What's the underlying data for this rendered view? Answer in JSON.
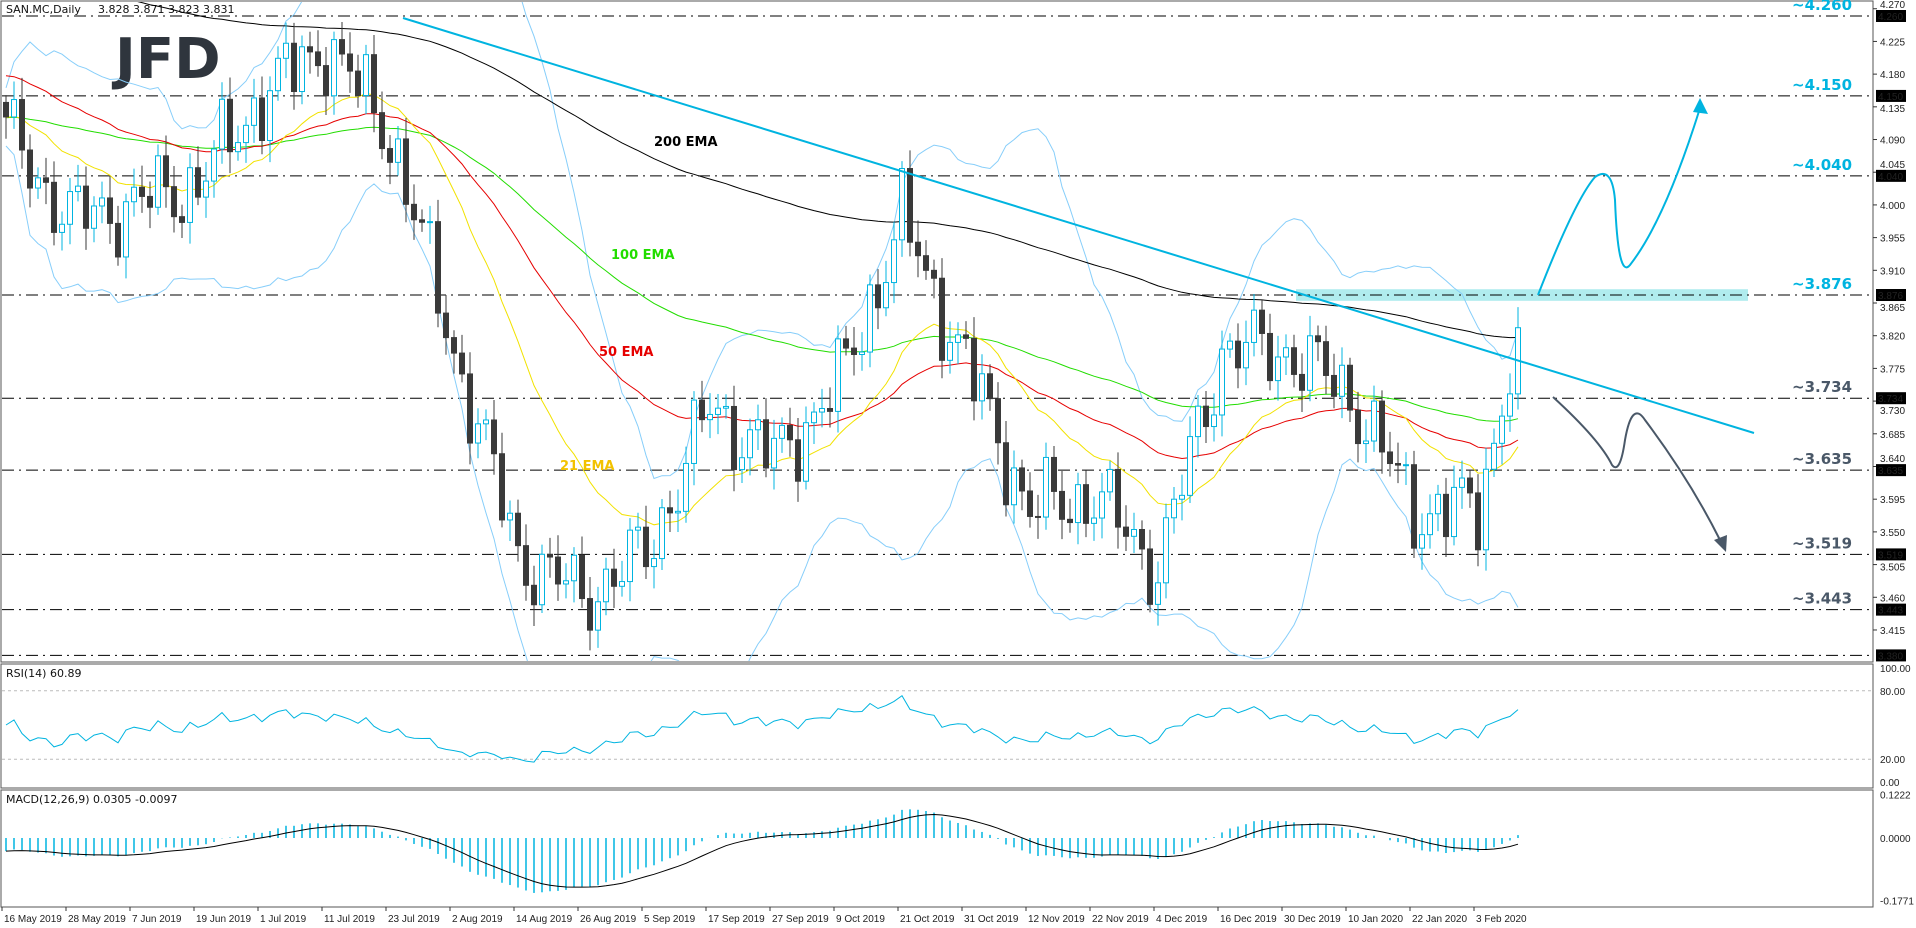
{
  "header": {
    "symbol_info": "SAN.MC,Daily",
    "ohlc": "3.828 3.871 3.823 3.831"
  },
  "logo": "JFD",
  "rsi_panel": {
    "label": "RSI(14) 60.89",
    "ticks": [
      "100.00",
      "80.00",
      "20.00",
      "0.00"
    ]
  },
  "macd_panel": {
    "label": "MACD(12,26,9) 0.0305 -0.0097",
    "ticks": [
      "0.1222",
      "0.0000",
      "-0.1771"
    ]
  },
  "colors": {
    "bull": "#00b4e0",
    "bear": "#3a3a3a",
    "ema21": "#f2e200",
    "ema50": "#e60000",
    "ema100": "#22dd00",
    "ema200": "#000000",
    "bollinger": "#87cefa",
    "up_level": "#00b4e0",
    "down_level": "#4a5868",
    "zone": "#b0ecee"
  },
  "ema_labels": [
    {
      "text": "200 EMA",
      "color": "#000000"
    },
    {
      "text": "100 EMA",
      "color": "#22dd00"
    },
    {
      "text": "50 EMA",
      "color": "#e60000"
    },
    {
      "text": "21 EMA",
      "color": "#f2c200"
    }
  ],
  "chart_data": {
    "type": "candlestick",
    "symbol": "SAN.MC",
    "timeframe": "Daily",
    "ylim": [
      3.38,
      4.27
    ],
    "price_ticks": [
      "4.270",
      "4.225",
      "4.180",
      "4.135",
      "4.090",
      "4.045",
      "4.000",
      "3.955",
      "3.910",
      "3.865",
      "3.820",
      "3.775",
      "3.730",
      "3.685",
      "3.640",
      "3.595",
      "3.550",
      "3.505",
      "3.460",
      "3.415"
    ],
    "x_labels": [
      "16 May 2019",
      "28 May 2019",
      "7 Jun 2019",
      "19 Jun 2019",
      "1 Jul 2019",
      "11 Jul 2019",
      "23 Jul 2019",
      "2 Aug 2019",
      "14 Aug 2019",
      "26 Aug 2019",
      "5 Sep 2019",
      "17 Sep 2019",
      "27 Sep 2019",
      "9 Oct 2019",
      "21 Oct 2019",
      "31 Oct 2019",
      "12 Nov 2019",
      "22 Nov 2019",
      "4 Dec 2019",
      "16 Dec 2019",
      "30 Dec 2019",
      "10 Jan 2020",
      "22 Jan 2020",
      "3 Feb 2020"
    ],
    "approx_closes_at_labels": [
      4.1,
      3.98,
      4.0,
      4.03,
      4.15,
      4.22,
      4.1,
      3.8,
      3.52,
      3.46,
      3.52,
      3.72,
      3.65,
      3.75,
      3.98,
      3.78,
      3.58,
      3.6,
      3.5,
      3.8,
      3.8,
      3.74,
      3.58,
      3.58
    ],
    "last_close": 3.831,
    "levels": [
      {
        "value": 4.26,
        "label": "~4.260",
        "axis": "4.260",
        "side": "up"
      },
      {
        "value": 4.15,
        "label": "~4.150",
        "axis": "4.150",
        "side": "up"
      },
      {
        "value": 4.04,
        "label": "~4.040",
        "axis": "4.040",
        "side": "up"
      },
      {
        "value": 3.876,
        "label": "~3.876",
        "axis": "3.876",
        "side": "up"
      },
      {
        "value": 3.734,
        "label": "~3.734",
        "axis": "3.734",
        "side": "down"
      },
      {
        "value": 3.635,
        "label": "~3.635",
        "axis": "3.635",
        "side": "down"
      },
      {
        "value": 3.519,
        "label": "~3.519",
        "axis": "3.519",
        "side": "down"
      },
      {
        "value": 3.443,
        "label": "~3.443",
        "axis": "3.443",
        "side": "down"
      },
      {
        "value": 3.38,
        "label": "",
        "axis": "3.380",
        "side": "down"
      }
    ],
    "indicators": [
      "EMA 21",
      "EMA 50",
      "EMA 100",
      "EMA 200",
      "Bollinger Bands",
      "RSI(14)",
      "MACD(12,26,9)"
    ]
  }
}
